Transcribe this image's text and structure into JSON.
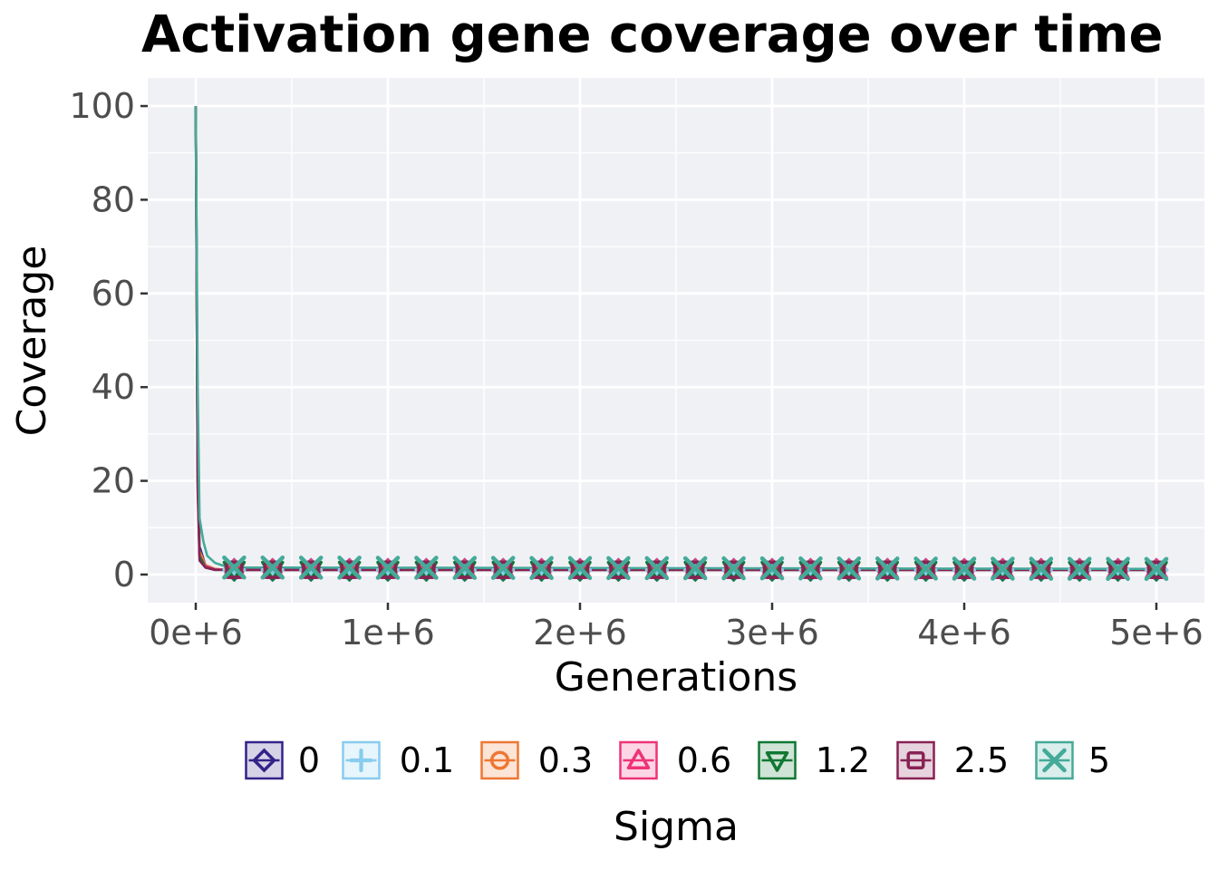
{
  "chart_data": {
    "type": "line",
    "title": "Activation gene coverage over time",
    "xlabel": "Generations",
    "ylabel": "Coverage",
    "xlim": [
      -250000,
      5250000
    ],
    "ylim": [
      -6,
      106
    ],
    "x_ticks": [
      0,
      1000000,
      2000000,
      3000000,
      4000000,
      5000000
    ],
    "x_tick_labels": [
      "0e+6",
      "1e+6",
      "2e+6",
      "3e+6",
      "4e+6",
      "5e+6"
    ],
    "y_ticks": [
      0,
      20,
      40,
      60,
      80,
      100
    ],
    "y_tick_labels": [
      "0",
      "20",
      "40",
      "60",
      "80",
      "100"
    ],
    "grid": true,
    "legend": {
      "title": "Sigma",
      "placement": "bottom"
    },
    "marker_x": [
      200000,
      400000,
      600000,
      800000,
      1000000,
      1200000,
      1400000,
      1600000,
      1800000,
      2000000,
      2200000,
      2400000,
      2600000,
      2800000,
      3000000,
      3200000,
      3400000,
      3600000,
      3800000,
      4000000,
      4200000,
      4400000,
      4600000,
      4800000,
      5000000
    ],
    "series": [
      {
        "name": "0",
        "color": "#332288",
        "marker": "diamond",
        "x": [
          0,
          10000,
          20000,
          50000,
          100000,
          150000,
          200000,
          5000000
        ],
        "y": [
          100,
          30,
          6,
          2,
          1.2,
          1,
          1,
          1
        ]
      },
      {
        "name": "0.1",
        "color": "#88ccee",
        "marker": "plus",
        "x": [
          0,
          10000,
          20000,
          50000,
          100000,
          150000,
          200000,
          5000000
        ],
        "y": [
          100,
          28,
          5,
          2,
          1.2,
          1,
          1,
          1
        ]
      },
      {
        "name": "0.3",
        "color": "#ee7733",
        "marker": "circle",
        "x": [
          0,
          10000,
          20000,
          50000,
          100000,
          150000,
          200000,
          5000000
        ],
        "y": [
          100,
          25,
          5,
          2,
          1.2,
          1,
          1,
          1
        ]
      },
      {
        "name": "0.6",
        "color": "#ee3377",
        "marker": "triangle-up",
        "x": [
          0,
          10000,
          20000,
          50000,
          100000,
          150000,
          200000,
          5000000
        ],
        "y": [
          100,
          22,
          4,
          1.8,
          1.1,
          1,
          1,
          1
        ]
      },
      {
        "name": "1.2",
        "color": "#117733",
        "marker": "triangle-down",
        "x": [
          0,
          10000,
          20000,
          50000,
          100000,
          150000,
          200000,
          5000000
        ],
        "y": [
          100,
          20,
          4,
          1.5,
          1,
          1,
          1,
          1
        ]
      },
      {
        "name": "2.5",
        "color": "#882255",
        "marker": "square",
        "x": [
          0,
          10000,
          20000,
          50000,
          100000,
          150000,
          200000,
          5000000
        ],
        "y": [
          100,
          18,
          3,
          1.5,
          1,
          1,
          1,
          1
        ]
      },
      {
        "name": "5",
        "color": "#44aa99",
        "marker": "x",
        "x": [
          0,
          10000,
          20000,
          40000,
          60000,
          100000,
          150000,
          200000,
          5000000
        ],
        "y": [
          100,
          40,
          12,
          7,
          4,
          2.5,
          1.8,
          1.5,
          1.2
        ]
      }
    ]
  }
}
